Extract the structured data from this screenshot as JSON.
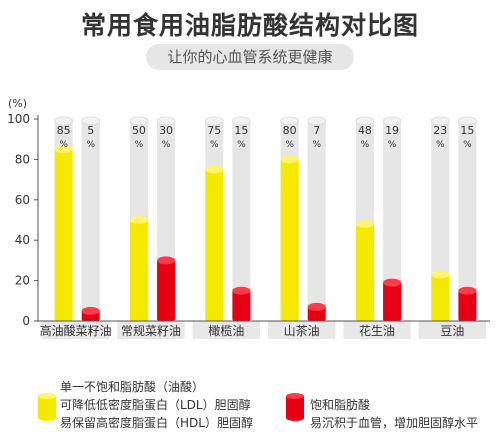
{
  "title": "常用食用油脂肪酸结构对比图",
  "subtitle": "让你的心血管系统更健康",
  "chart_data": {
    "type": "bar",
    "ylabel": "(%)",
    "ylim": [
      0,
      100
    ],
    "yticks": [
      0,
      20,
      40,
      60,
      80,
      100
    ],
    "categories": [
      "高油酸菜籽油",
      "常规菜籽油",
      "橄榄油",
      "山茶油",
      "花生油",
      "豆油"
    ],
    "series": [
      {
        "name": "单一不饱和脂肪酸（油酸）",
        "values": [
          85,
          50,
          75,
          80,
          48,
          23
        ],
        "color": "#f5e900"
      },
      {
        "name": "饱和脂肪酸",
        "values": [
          5,
          30,
          15,
          7,
          19,
          15
        ],
        "color": "#e60012"
      }
    ],
    "value_unit": "%"
  },
  "legend": {
    "yellow": {
      "heading": "单一不饱和脂肪酸（油酸）",
      "lines": [
        "可降低低密度脂蛋白（LDL）胆固醇",
        "易保留高密度脂蛋白（HDL）胆固醇"
      ]
    },
    "red": {
      "heading": "饱和脂肪酸",
      "lines": [
        "易沉积于血管，增加胆固醇水平"
      ]
    }
  },
  "colors": {
    "yellow": "#f5e900",
    "red": "#e60012",
    "tube": "#e6e6e6",
    "label_bg": "#e8e8e8"
  }
}
